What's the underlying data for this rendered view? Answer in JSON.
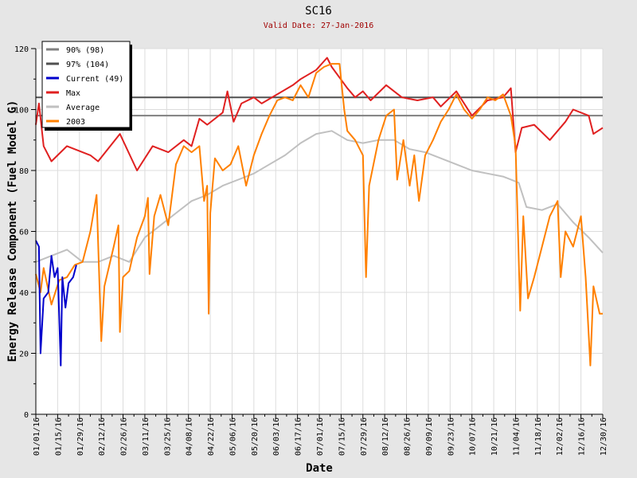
{
  "chart_data": {
    "type": "line",
    "title": "SC16",
    "subtitle": "Valid Date: 27-Jan-2016",
    "xlabel": "Date",
    "ylabel": "Energy Release Component (Fuel Model G)",
    "ylim": [
      0,
      120
    ],
    "yticks": [
      0,
      20,
      40,
      60,
      80,
      100,
      120
    ],
    "xlim_days": [
      0,
      364
    ],
    "xtick_labels": [
      "01/01/16",
      "01/15/16",
      "01/29/16",
      "02/12/16",
      "02/26/16",
      "03/11/16",
      "03/25/16",
      "04/08/16",
      "04/22/16",
      "05/06/16",
      "05/20/16",
      "06/03/16",
      "06/17/16",
      "07/01/16",
      "07/15/16",
      "07/29/16",
      "08/12/16",
      "08/26/16",
      "09/09/16",
      "09/23/16",
      "10/07/16",
      "10/21/16",
      "11/04/16",
      "11/18/16",
      "12/02/16",
      "12/16/16",
      "12/30/16"
    ],
    "grid": true,
    "legend_position": "top-left",
    "thresholds": [
      {
        "name": "90% (98)",
        "value": 98,
        "color": "#808080"
      },
      {
        "name": "97% (104)",
        "value": 104,
        "color": "#505050"
      }
    ],
    "series": [
      {
        "name": "Average",
        "color": "#c0c0c0",
        "x": [
          0,
          10,
          20,
          30,
          40,
          50,
          60,
          70,
          80,
          90,
          100,
          110,
          120,
          130,
          140,
          150,
          160,
          170,
          180,
          190,
          200,
          210,
          220,
          230,
          240,
          250,
          260,
          270,
          280,
          290,
          300,
          310,
          315,
          325,
          335,
          345,
          355,
          364
        ],
        "y": [
          50,
          52,
          54,
          50,
          50,
          52,
          50,
          58,
          62,
          66,
          70,
          72,
          75,
          77,
          79,
          82,
          85,
          89,
          92,
          93,
          90,
          89,
          90,
          90,
          87,
          86,
          84,
          82,
          80,
          79,
          78,
          76,
          68,
          67,
          69,
          63,
          58,
          53
        ]
      },
      {
        "name": "Max",
        "color": "#e02020",
        "x": [
          0,
          2,
          5,
          10,
          20,
          35,
          40,
          54,
          65,
          75,
          85,
          95,
          100,
          105,
          110,
          120,
          123,
          127,
          132,
          140,
          145,
          155,
          165,
          170,
          180,
          187,
          190,
          200,
          205,
          210,
          215,
          225,
          235,
          245,
          255,
          260,
          270,
          280,
          290,
          300,
          305,
          308,
          312,
          320,
          330,
          340,
          345,
          355,
          358,
          364
        ],
        "y": [
          95,
          102,
          88,
          83,
          88,
          85,
          83,
          92,
          80,
          88,
          86,
          90,
          88,
          97,
          95,
          99,
          106,
          96,
          102,
          104,
          102,
          105,
          108,
          110,
          113,
          117,
          114,
          107,
          104,
          106,
          103,
          108,
          104,
          103,
          104,
          101,
          106,
          98,
          103,
          104,
          107,
          86,
          94,
          95,
          90,
          96,
          100,
          98,
          92,
          94
        ]
      },
      {
        "name": "2003",
        "color": "#ff8000",
        "x": [
          0,
          3,
          5,
          10,
          15,
          20,
          25,
          30,
          35,
          39,
          42,
          44,
          50,
          53,
          54,
          56,
          60,
          65,
          70,
          72,
          73,
          76,
          80,
          85,
          90,
          95,
          100,
          105,
          108,
          110,
          111,
          112,
          115,
          120,
          125,
          130,
          135,
          140,
          145,
          150,
          155,
          160,
          165,
          170,
          175,
          180,
          185,
          190,
          195,
          198,
          200,
          205,
          210,
          212,
          214,
          220,
          225,
          230,
          232,
          236,
          240,
          243,
          246,
          250,
          255,
          260,
          265,
          270,
          275,
          280,
          285,
          290,
          295,
          300,
          305,
          308,
          311,
          313,
          316,
          320,
          325,
          330,
          335,
          337,
          340,
          345,
          350,
          353,
          356,
          358,
          362,
          364
        ],
        "y": [
          46,
          40,
          48,
          36,
          44,
          45,
          49,
          50,
          60,
          72,
          24,
          42,
          55,
          62,
          27,
          45,
          47,
          58,
          65,
          71,
          46,
          65,
          72,
          62,
          82,
          88,
          86,
          88,
          70,
          75,
          33,
          66,
          84,
          80,
          82,
          88,
          75,
          85,
          92,
          98,
          103,
          104,
          103,
          108,
          104,
          112,
          114,
          115,
          115,
          100,
          93,
          90,
          85,
          45,
          75,
          90,
          98,
          100,
          77,
          90,
          75,
          85,
          70,
          85,
          90,
          96,
          100,
          105,
          100,
          97,
          100,
          104,
          103,
          105,
          98,
          88,
          34,
          65,
          38,
          45,
          55,
          65,
          70,
          45,
          60,
          55,
          65,
          45,
          16,
          42,
          33,
          33
        ]
      },
      {
        "name": "Current (49)",
        "color": "#0000cc",
        "x": [
          0,
          2,
          3,
          5,
          8,
          10,
          12,
          14,
          16,
          17,
          19,
          21,
          24,
          26
        ],
        "y": [
          57,
          55,
          20,
          38,
          40,
          52,
          45,
          48,
          16,
          45,
          35,
          43,
          45,
          49
        ]
      }
    ]
  }
}
